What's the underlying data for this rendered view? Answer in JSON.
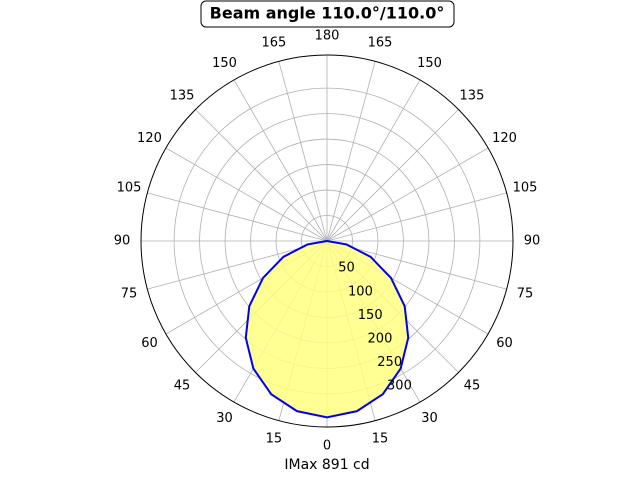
{
  "chart_data": {
    "type": "polar",
    "title": "Beam angle 110.0°/110.0°",
    "xlabel": "IMax 891 cd",
    "x": [
      -90,
      -80,
      -70,
      -60,
      -50,
      -40,
      -30,
      -20,
      -10,
      0,
      10,
      20,
      30,
      40,
      50,
      60,
      70,
      80,
      90
    ],
    "values": [
      0,
      39,
      91,
      145,
      199,
      248,
      289,
      320,
      339,
      346,
      339,
      320,
      289,
      248,
      199,
      145,
      91,
      39,
      0
    ],
    "color": "#0000ee",
    "fill": "#ffff80",
    "rlim": [
      0,
      365
    ],
    "rticks": [
      50,
      100,
      150,
      200,
      250,
      300
    ],
    "thetaticks": [
      {
        "value": -165,
        "label": "165"
      },
      {
        "value": -150,
        "label": "150"
      },
      {
        "value": -135,
        "label": "135"
      },
      {
        "value": -120,
        "label": "120"
      },
      {
        "value": -105,
        "label": "105"
      },
      {
        "value": -90,
        "label": "90"
      },
      {
        "value": -75,
        "label": "75"
      },
      {
        "value": -60,
        "label": "60"
      },
      {
        "value": -45,
        "label": "45"
      },
      {
        "value": -30,
        "label": "30"
      },
      {
        "value": -15,
        "label": "15"
      },
      0,
      15,
      30,
      45,
      60,
      75,
      90,
      105,
      120,
      135,
      150,
      165,
      180
    ],
    "grid": true
  }
}
